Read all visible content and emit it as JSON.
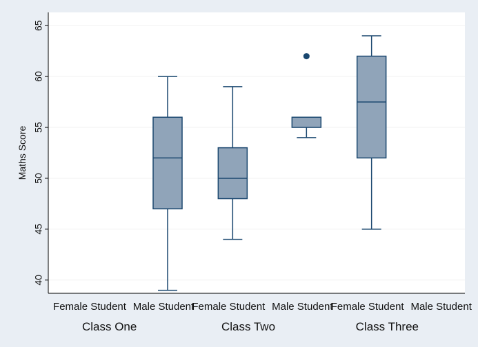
{
  "chart_data": {
    "type": "box",
    "title": "",
    "ylabel": "Maths Score",
    "xlabel": "",
    "ylim": [
      38.7,
      66.3
    ],
    "yticks": [
      40,
      45,
      50,
      55,
      60,
      65
    ],
    "grid": true,
    "groups": [
      {
        "label": "Class One",
        "categories": [
          {
            "label": "Female Student",
            "box": null
          },
          {
            "label": "Male Student",
            "box": {
              "whisker_low": 39,
              "q1": 47,
              "median": 52,
              "q3": 56,
              "whisker_high": 60,
              "outliers": []
            }
          }
        ]
      },
      {
        "label": "Class Two",
        "categories": [
          {
            "label": "Female Student",
            "box": {
              "whisker_low": 44,
              "q1": 48,
              "median": 50,
              "q3": 53,
              "whisker_high": 59,
              "outliers": []
            }
          },
          {
            "label": "Male Student",
            "box": {
              "whisker_low": 54,
              "q1": 55,
              "median": 56,
              "q3": 56,
              "whisker_high": 56,
              "outliers": [
                62
              ]
            }
          }
        ]
      },
      {
        "label": "Class Three",
        "categories": [
          {
            "label": "Female Student",
            "box": {
              "whisker_low": 45,
              "q1": 52,
              "median": 57.5,
              "q3": 62,
              "whisker_high": 64,
              "outliers": []
            }
          },
          {
            "label": "Male Student",
            "box": null
          }
        ]
      }
    ],
    "colors": {
      "box_fill": "#90a4b9",
      "box_stroke": "#1a476f",
      "outlier": "#1a476f",
      "grid": "#f2f2f2",
      "plot_bg": "#ffffff",
      "page_bg": "#e9eef4"
    }
  }
}
